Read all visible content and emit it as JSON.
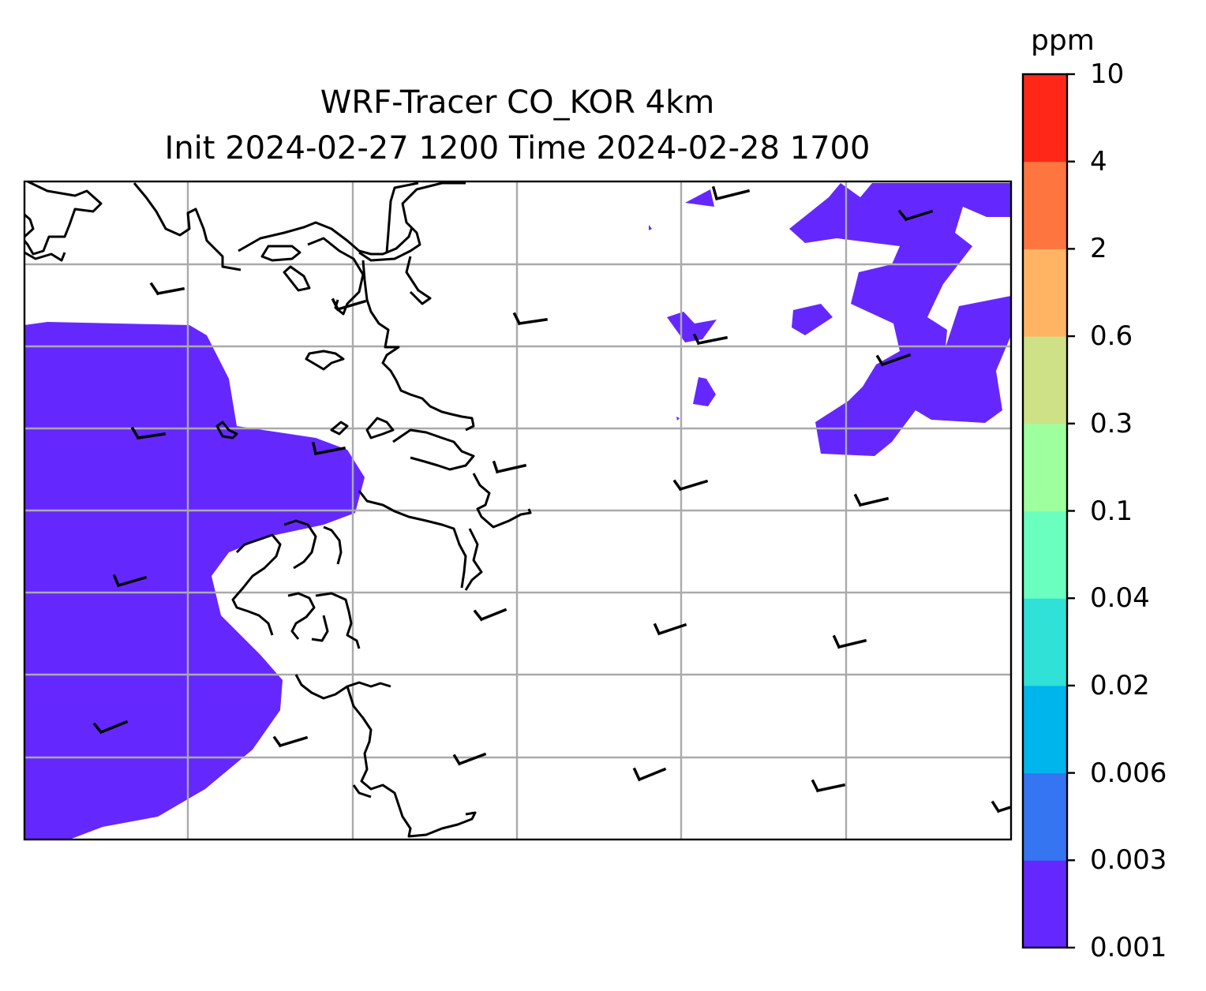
{
  "title": {
    "line1": "WRF-Tracer CO_KOR 4km",
    "line2": "Init 2024-02-27 1200 Time 2024-02-28 1700"
  },
  "colorbar": {
    "unit": "ppm",
    "ticks": [
      "0.001",
      "0.003",
      "0.006",
      "0.02",
      "0.04",
      "0.1",
      "0.3",
      "0.6",
      "2",
      "4",
      "10"
    ],
    "colors": [
      "#6428FF",
      "#3575F2",
      "#00B4EC",
      "#2FE1D7",
      "#6AFFBE",
      "#9EFF9E",
      "#CFE186",
      "#FFB464",
      "#FF7540",
      "#FF2818"
    ]
  },
  "map": {
    "coastline_color": "#000000",
    "gridline_color": "#aaaaaa",
    "fill_color": "#6428FF",
    "wind_barb_color": "#000000"
  }
}
